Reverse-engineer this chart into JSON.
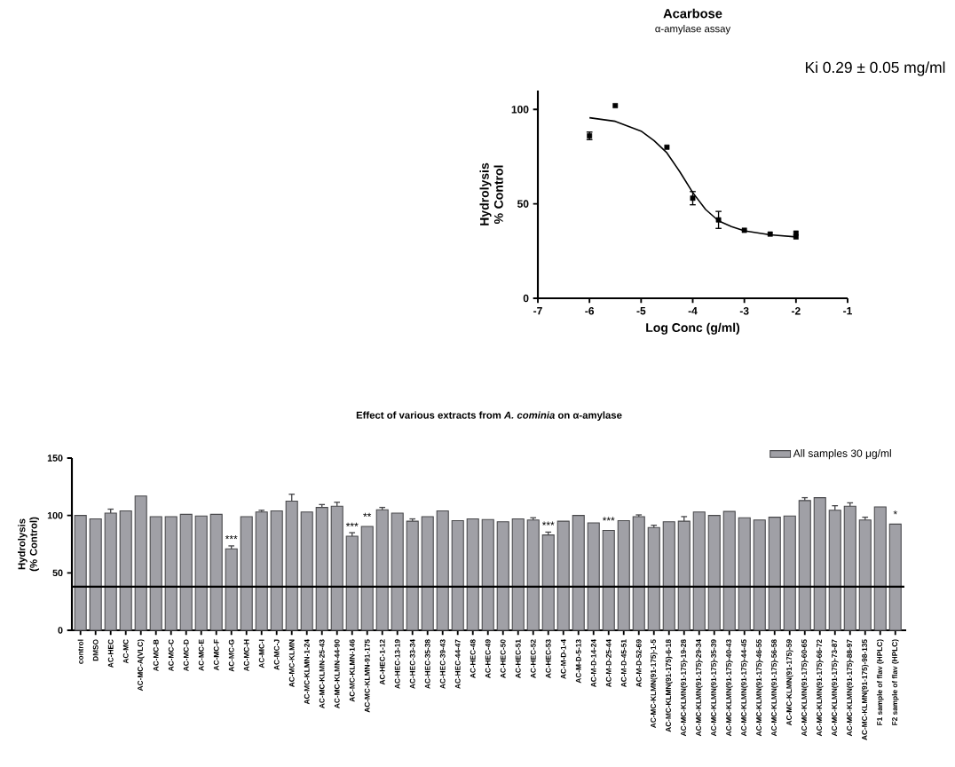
{
  "chart_data": [
    {
      "type": "scatter",
      "title": "Acarbose",
      "subtitle": "α-amylase assay",
      "xlabel": "Log Conc (g/ml)",
      "ylabel": "Hydrolysis % Control",
      "xlim": [
        -7,
        -1
      ],
      "xticks": [
        -7,
        -6,
        -5,
        -4,
        -3,
        -2,
        -1
      ],
      "ylim": [
        0,
        110
      ],
      "yticks": [
        0,
        50,
        100
      ],
      "grid": false,
      "legend": false,
      "marker": "square",
      "annotations": [
        "Ki 0.29 ± 0.05 mg/ml"
      ],
      "series": [
        {
          "type": "scatter",
          "color": "#000000",
          "x": [
            -6,
            -5.5,
            -4.5,
            -4,
            -3.5,
            -3,
            -2.5,
            -2,
            -2
          ],
          "values": [
            86,
            102,
            80,
            53,
            41.5,
            36,
            34,
            34.5,
            32.5
          ],
          "errors": [
            2,
            null,
            null,
            3.5,
            4.5,
            null,
            null,
            null,
            null
          ]
        },
        {
          "type": "line",
          "color": "#000000",
          "marker": "none",
          "line_style": "solid",
          "x": [
            -6,
            -5.5,
            -5,
            -4.75,
            -4.5,
            -4.25,
            -4,
            -3.75,
            -3.5,
            -3.25,
            -3,
            -2.5,
            -2
          ],
          "values": [
            95.6,
            93.7,
            88.5,
            83.5,
            77,
            67,
            56,
            47,
            41,
            38,
            35.7,
            33.6,
            32.5
          ]
        }
      ]
    },
    {
      "type": "bar",
      "title": "Effect of various extracts from *A. cominia* on α-amylase",
      "ylabel": "Hydrolysis (% Control)",
      "ylim": [
        0,
        150
      ],
      "yticks": [
        0,
        50,
        100,
        150
      ],
      "grid": false,
      "legend": "top right",
      "categories": [
        "control",
        "DMSO",
        "AC-HEC",
        "AC-MC",
        "AC-MC-A(VLC)",
        "AC-MC-B",
        "AC-MC-C",
        "AC-MC-D",
        "AC-MC-E",
        "AC-MC-F",
        "AC-MC-G",
        "AC-MC-H",
        "AC-MC-I",
        "AC-MC-J",
        "AC-MC-KLMN",
        "AC-MC-KLMN-1-24",
        "AC-MC-KLMN-25-43",
        "AC-MC-KLMN-44-90",
        "AC-MC-KLMN-146",
        "AC-MC-KLMN-91-175",
        "AC-HEC-1-12",
        "AC-HEC-13-19",
        "AC-HEC-33-34",
        "AC-HEC-35-38",
        "AC-HEC-39-43",
        "AC-HEC-44-47",
        "AC-HEC-48",
        "AC-HEC-49",
        "AC-HEC-50",
        "AC-HEC-51",
        "AC-HEC-52",
        "AC-HEC-53",
        "AC-M-D-1-4",
        "AC-M-D-5-13",
        "AC-M-D-14-24",
        "AC-M-D-25-44",
        "AC-M-D-45-51",
        "AC-M-D-52-69",
        "AC-MC-KLMN(91-175)-1-5",
        "AC-MC-KLMN(91-175)-6-18",
        "AC-MC-KLMN(91-175)-19-28",
        "AC-MC-KLMN(91-175)-29-34",
        "AC-MC-KLMN(91-175)-35-39",
        "AC-MC-KLMN(91-175)-40-43",
        "AC-MC-KLMN(91-175)-44-45",
        "AC-MC-KLMN(91-175)-46-55",
        "AC-MC-KLMN(91-175)-56-58",
        "AC-MC-KLMN(91-175)-59",
        "AC-MC-KLMN(91-175)-60-65",
        "AC-MC-KLMN(91-175)-66-72",
        "AC-MC-KLMN(91-175)-73-87",
        "AC-MC-KLMN(91-175)-88-97",
        "AC-MC-KLMN(91-175)-98-135",
        "F1 sample of flav (HPLC)",
        "F2 sample of flav (HPLC)"
      ],
      "series": [
        {
          "name": "All samples 30 μg/ml",
          "color": "#a0a0a6",
          "values": [
            100,
            97,
            102,
            104,
            117,
            99,
            99,
            101,
            99.5,
            101,
            71,
            99,
            103,
            104,
            112.5,
            103,
            107,
            108,
            82,
            90.5,
            105,
            102,
            95,
            99,
            104,
            95.5,
            97,
            96.5,
            94.5,
            97,
            96,
            83,
            95,
            100,
            93.5,
            87,
            95.5,
            99,
            89.5,
            94.5,
            95,
            103,
            100,
            103.5,
            98,
            96,
            98.5,
            99.5,
            113,
            115.5,
            104.5,
            108,
            96,
            107.5,
            92.5
          ],
          "errors": [
            null,
            null,
            3.5,
            null,
            null,
            null,
            null,
            null,
            null,
            null,
            2.5,
            null,
            1.5,
            null,
            6,
            null,
            2.5,
            3.5,
            3,
            null,
            2,
            null,
            2,
            null,
            null,
            null,
            null,
            null,
            null,
            null,
            2,
            2.5,
            null,
            null,
            null,
            null,
            null,
            1.5,
            2,
            null,
            4,
            null,
            null,
            null,
            null,
            null,
            null,
            null,
            2.5,
            null,
            4,
            3,
            2.5,
            null,
            null
          ]
        }
      ],
      "ref_lines": [
        {
          "axis": "y",
          "value": 38,
          "color": "#000000"
        }
      ],
      "annotations": [
        {
          "text": "***",
          "x": "AC-MC-G",
          "y": 71
        },
        {
          "text": "***",
          "x": "AC-MC-KLMN-146",
          "y": 82
        },
        {
          "text": "**",
          "x": "AC-MC-KLMN-91-175",
          "y": 90.5
        },
        {
          "text": "***",
          "x": "AC-HEC-53",
          "y": 83
        },
        {
          "text": "***",
          "x": "AC-M-D-25-44",
          "y": 87
        },
        {
          "text": "*",
          "x": "F2 sample of flav (HPLC)",
          "y": 92.5
        }
      ]
    }
  ]
}
